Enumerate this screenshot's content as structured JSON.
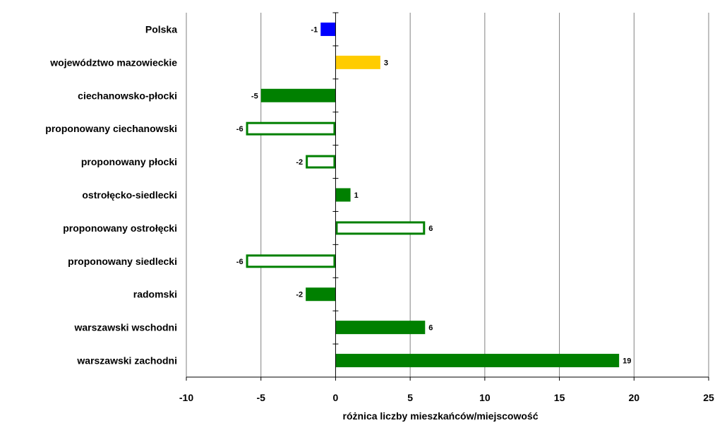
{
  "chart_data": {
    "type": "bar",
    "orientation": "horizontal",
    "title": "",
    "xlabel": "różnica liczby mieszkańców/miejscowość",
    "ylabel": "",
    "xlim": [
      -10,
      25
    ],
    "xticks": [
      "-10",
      "-5",
      "0",
      "5",
      "10",
      "15",
      "20",
      "25"
    ],
    "grid": "vertical",
    "categories": [
      "Polska",
      "województwo mazowieckie",
      "ciechanowsko-płocki",
      "proponowany ciechanowski",
      "proponowany płocki",
      "ostrołęcko-siedlecki",
      "proponowany ostrołęcki",
      "proponowany siedlecki",
      "radomski",
      "warszawski wschodni",
      "warszawski zachodni"
    ],
    "values": [
      -1,
      3,
      -5,
      -6,
      -2,
      1,
      6,
      -6,
      -2,
      6,
      19
    ],
    "data_labels": [
      "-1",
      "3",
      "-5",
      "-6",
      "-2",
      "1",
      "6",
      "-6",
      "-2",
      "6",
      "19"
    ],
    "bar_styles": [
      "solid-blue",
      "solid-gold",
      "solid-green",
      "outline-green",
      "outline-green",
      "solid-green",
      "outline-green",
      "outline-green",
      "solid-green",
      "solid-green",
      "solid-green"
    ],
    "colors": {
      "blue": "#0000ff",
      "gold": "#ffcc00",
      "green": "#008000",
      "grid": "#808080",
      "axis": "#000000"
    }
  }
}
